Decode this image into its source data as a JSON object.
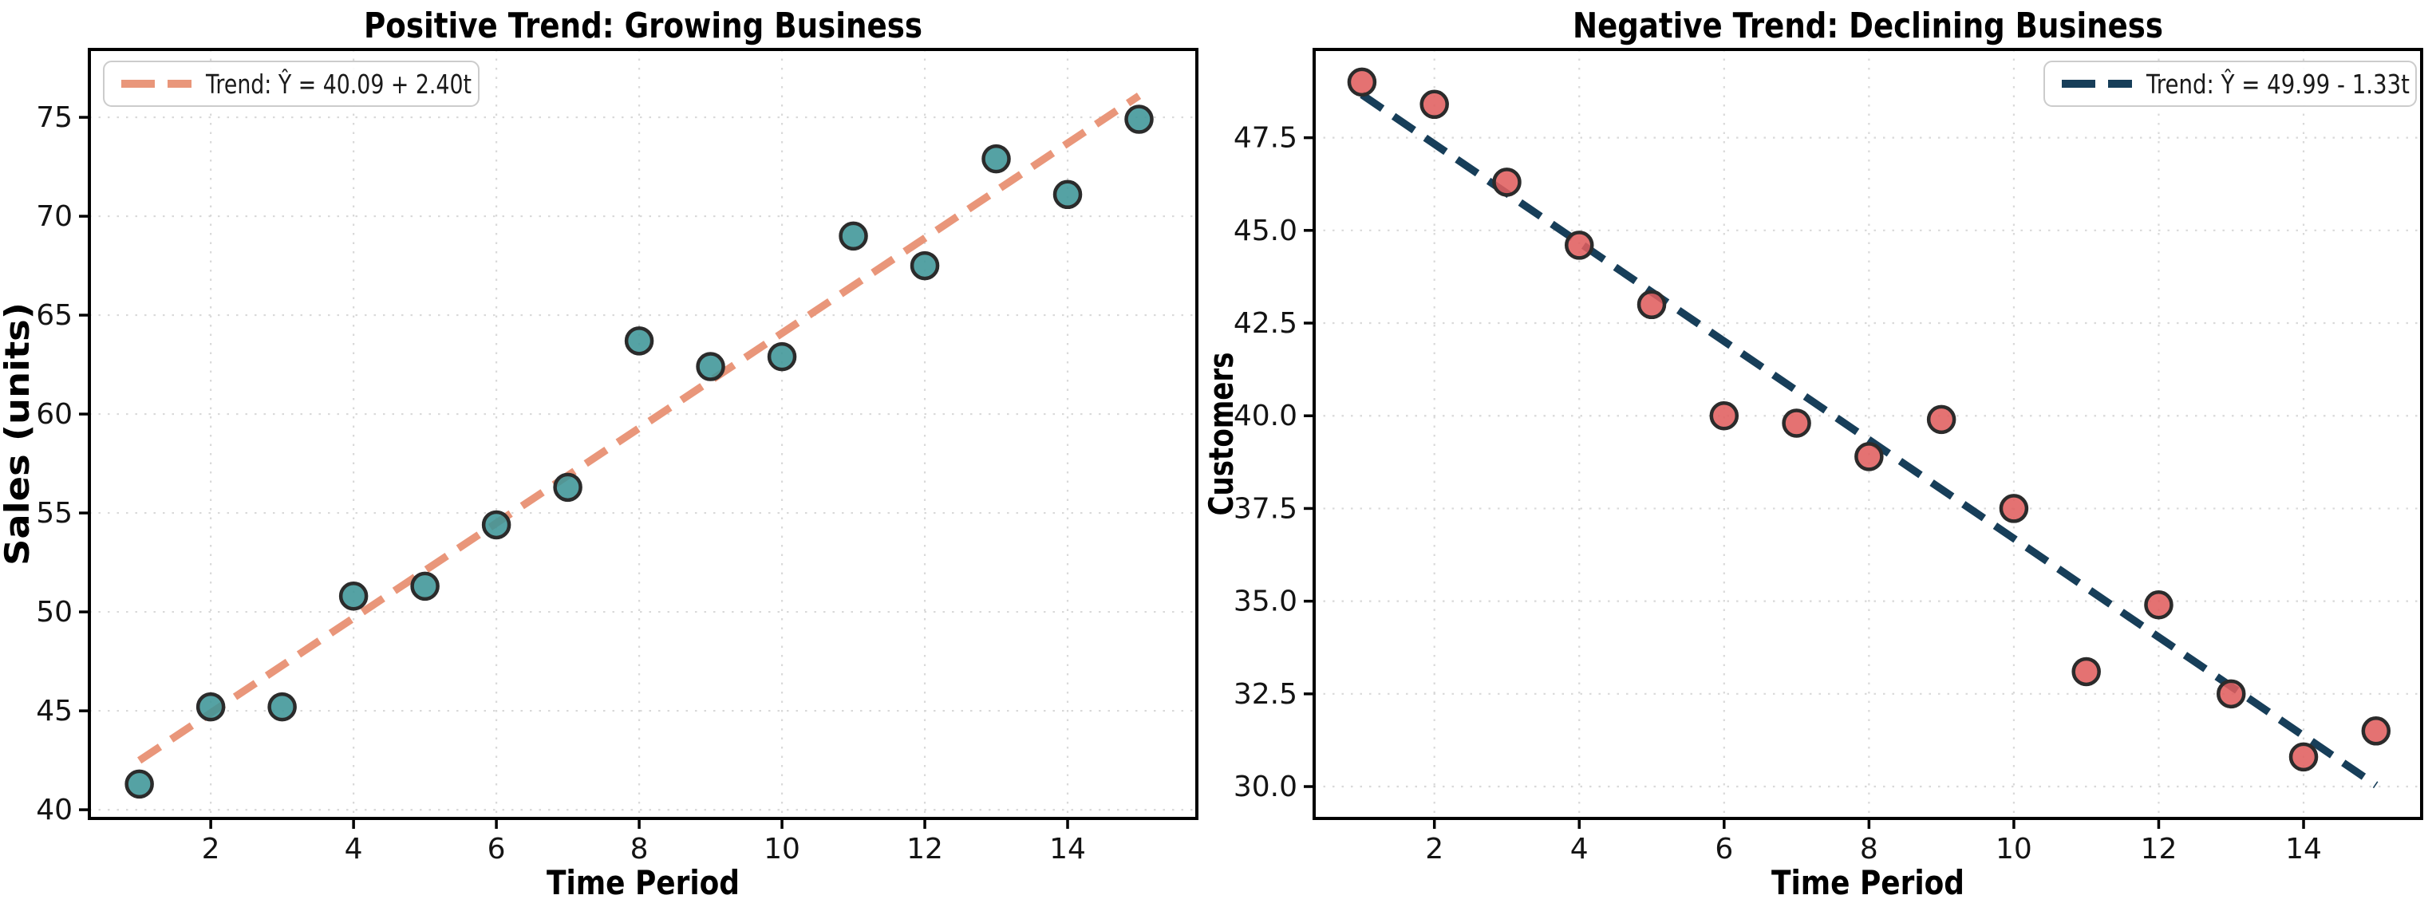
{
  "figure": {
    "background_color": "#ffffff",
    "grid_color": "#d9d9d9",
    "spine_color": "#000000",
    "marker_edge_color": "#2b2b2b"
  },
  "chart_data": [
    {
      "type": "scatter",
      "title": "Positive Trend: Growing Business",
      "xlabel": "Time Period",
      "ylabel": "Sales (units)",
      "legend": {
        "label": "Trend: Ŷ = 40.09 + 2.40t",
        "position": "upper left"
      },
      "x": [
        1,
        2,
        3,
        4,
        5,
        6,
        7,
        8,
        9,
        10,
        11,
        12,
        13,
        14,
        15
      ],
      "y": [
        41.3,
        45.2,
        45.2,
        50.8,
        51.3,
        54.4,
        56.3,
        63.7,
        62.4,
        62.9,
        69.0,
        67.5,
        72.9,
        71.1,
        74.9
      ],
      "trend": {
        "intercept": 40.09,
        "slope": 2.4,
        "x_start": 1,
        "x_end": 15
      },
      "marker_color": "#3e9597",
      "trend_color": "#E9967A",
      "xticks": [
        2,
        4,
        6,
        8,
        10,
        12,
        14
      ],
      "yticks": [
        40,
        45,
        50,
        55,
        60,
        65,
        70,
        75
      ],
      "ytick_decimals": 0,
      "xlim": [
        0.3,
        15.81
      ],
      "ylim": [
        39.56,
        78.43
      ],
      "grid": true
    },
    {
      "type": "scatter",
      "title": "Negative Trend: Declining Business",
      "xlabel": "Time Period",
      "ylabel": "Customers",
      "legend": {
        "label": "Trend: Ŷ = 49.99 - 1.33t",
        "position": "upper right"
      },
      "x": [
        1,
        2,
        3,
        4,
        5,
        6,
        7,
        8,
        9,
        10,
        11,
        12,
        13,
        14,
        15
      ],
      "y": [
        49.0,
        48.4,
        46.3,
        44.6,
        43.0,
        40.0,
        39.8,
        38.9,
        39.9,
        37.5,
        33.1,
        34.9,
        32.5,
        30.8,
        31.5
      ],
      "trend": {
        "intercept": 49.99,
        "slope": -1.33,
        "x_start": 1,
        "x_end": 15
      },
      "marker_color": "#e05e5e",
      "trend_color": "#173E59",
      "xticks": [
        2,
        4,
        6,
        8,
        10,
        12,
        14
      ],
      "yticks": [
        30,
        32.5,
        35,
        37.5,
        40,
        42.5,
        45,
        47.5
      ],
      "ytick_decimals": 1,
      "xlim": [
        0.34,
        15.63
      ],
      "ylim": [
        29.14,
        49.88
      ],
      "grid": true
    }
  ]
}
